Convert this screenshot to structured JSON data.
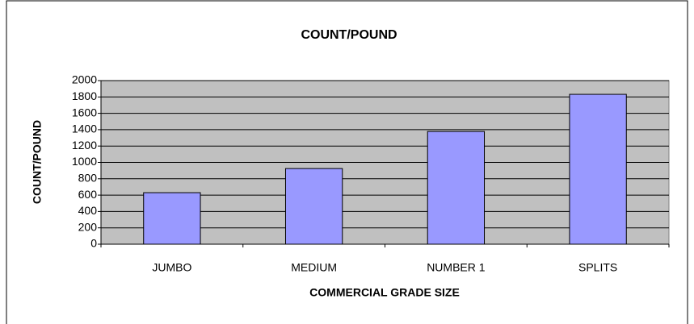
{
  "chart_data": {
    "type": "bar",
    "title": "COUNT/POUND",
    "x_label": "COMMERCIAL GRADE SIZE",
    "y_label": "COUNT/POUND",
    "categories": [
      "JUMBO",
      "MEDIUM",
      "NUMBER 1",
      "SPLITS"
    ],
    "values": [
      630,
      925,
      1378,
      1832
    ],
    "color": "#9999ff",
    "ylim": [
      0,
      2000
    ],
    "yticks": [
      0,
      200,
      400,
      600,
      800,
      1000,
      1200,
      1400,
      1600,
      1800,
      2000
    ],
    "grid": true
  }
}
